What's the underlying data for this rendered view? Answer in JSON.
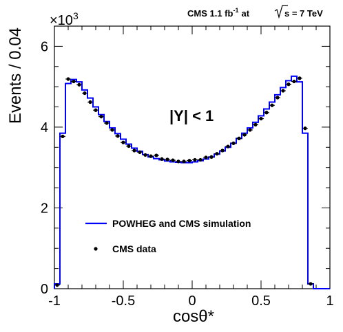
{
  "header": {
    "experiment": "CMS 1.1 fb",
    "lumi_sup": "-1",
    "at_label": "at",
    "sqrt_s": "s = 7 TeV"
  },
  "axes": {
    "y_multiplier": "×10",
    "y_multiplier_exp": "3"
  },
  "annotation": "|Y| < 1",
  "chart_data": {
    "type": "histogram",
    "xlabel": "cosθ*",
    "ylabel": "Events / 0.04",
    "xlim": [
      -1,
      1
    ],
    "ylim": [
      0,
      6.5
    ],
    "y_scale_note": "×10^3",
    "x_ticks": [
      "-1",
      "-0.5",
      "0",
      "0.5",
      "1"
    ],
    "y_ticks": [
      "0",
      "2",
      "4",
      "6"
    ],
    "bin_width": 0.04,
    "bin_low_edges": [
      -1.0,
      -0.96,
      -0.92,
      -0.88,
      -0.84,
      -0.8,
      -0.76,
      -0.72,
      -0.68,
      -0.64,
      -0.6,
      -0.56,
      -0.52,
      -0.48,
      -0.44,
      -0.4,
      -0.36,
      -0.32,
      -0.28,
      -0.24,
      -0.2,
      -0.16,
      -0.12,
      -0.08,
      -0.04,
      0.0,
      0.04,
      0.08,
      0.12,
      0.16,
      0.2,
      0.24,
      0.28,
      0.32,
      0.36,
      0.4,
      0.44,
      0.48,
      0.52,
      0.56,
      0.6,
      0.64,
      0.68,
      0.72,
      0.76,
      0.8,
      0.84,
      0.88,
      0.92,
      0.96
    ],
    "series": [
      {
        "name": "POWHEG and CMS simulation",
        "style": "step",
        "color": "#0000ff",
        "values": [
          0.12,
          3.85,
          5.08,
          5.18,
          5.12,
          4.92,
          4.72,
          4.5,
          4.31,
          4.14,
          3.98,
          3.84,
          3.7,
          3.58,
          3.48,
          3.4,
          3.32,
          3.26,
          3.22,
          3.19,
          3.16,
          3.14,
          3.13,
          3.12,
          3.12,
          3.14,
          3.17,
          3.21,
          3.26,
          3.33,
          3.41,
          3.5,
          3.6,
          3.72,
          3.85,
          3.98,
          4.12,
          4.28,
          4.45,
          4.62,
          4.8,
          4.98,
          5.15,
          5.26,
          5.12,
          3.85,
          0.12,
          0,
          0,
          0
        ]
      },
      {
        "name": "CMS data",
        "style": "marker",
        "color": "#000000",
        "values": [
          0.09,
          3.77,
          5.19,
          5.13,
          5.05,
          4.84,
          4.62,
          4.42,
          4.26,
          4.1,
          3.93,
          3.78,
          3.62,
          3.53,
          3.42,
          3.38,
          3.31,
          3.28,
          3.3,
          3.21,
          3.2,
          3.18,
          3.15,
          3.15,
          3.17,
          3.19,
          3.19,
          3.25,
          3.26,
          3.34,
          3.42,
          3.52,
          3.6,
          3.72,
          3.81,
          3.93,
          4.06,
          4.21,
          4.36,
          4.54,
          4.73,
          4.9,
          5.06,
          5.13,
          5.21,
          3.97,
          0.12,
          0,
          0,
          0
        ]
      }
    ],
    "legend": {
      "position": "lower-center"
    }
  }
}
